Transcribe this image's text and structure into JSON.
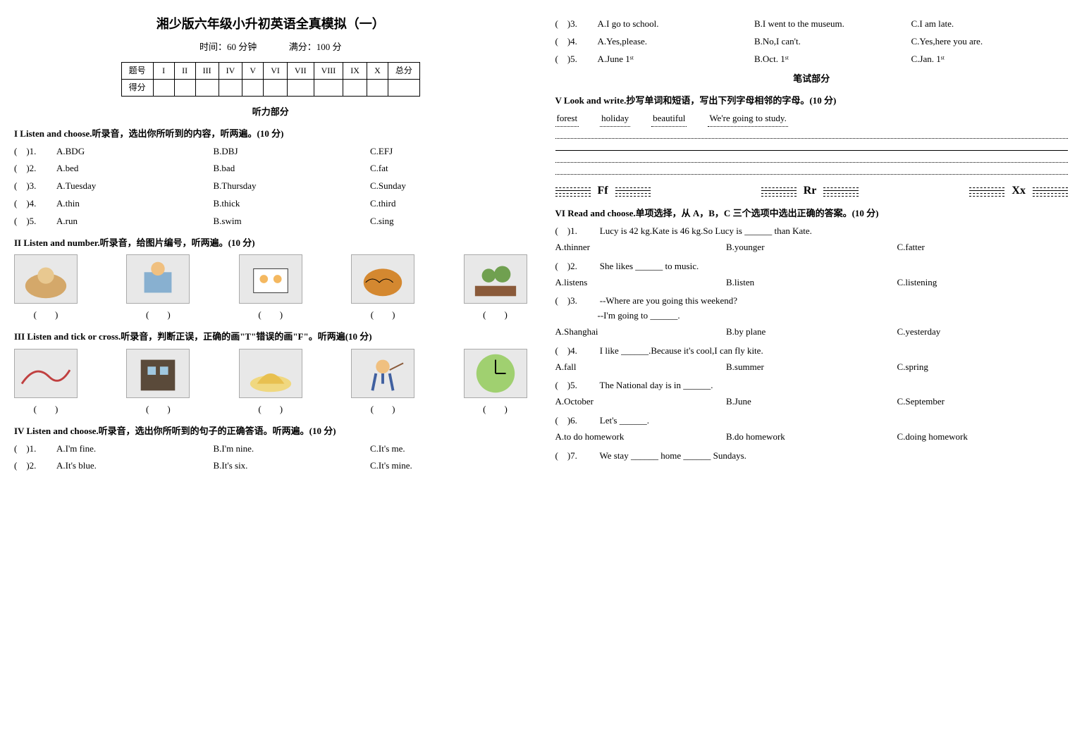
{
  "header": {
    "title": "湘少版六年级小升初英语全真模拟（一）",
    "subtitle_left": "时间：60 分钟",
    "subtitle_right": "满分：100 分"
  },
  "score_table": {
    "row1": [
      "题号",
      "I",
      "II",
      "III",
      "IV",
      "V",
      "VI",
      "VII",
      "VIII",
      "IX",
      "X",
      "总分"
    ],
    "row2_label": "得分"
  },
  "listening_hdr": "听力部分",
  "sec1": {
    "head": "I Listen and choose.听录音，选出你所听到的内容，听两遍。(10 分)",
    "items": [
      {
        "n": ")1.",
        "a": "A.BDG",
        "b": "B.DBJ",
        "c": "C.EFJ"
      },
      {
        "n": ")2.",
        "a": "A.bed",
        "b": "B.bad",
        "c": "C.fat"
      },
      {
        "n": ")3.",
        "a": "A.Tuesday",
        "b": "B.Thursday",
        "c": "C.Sunday"
      },
      {
        "n": ")4.",
        "a": "A.thin",
        "b": "B.thick",
        "c": "C.third"
      },
      {
        "n": ")5.",
        "a": "A.run",
        "b": "B.swim",
        "c": "C.sing"
      }
    ]
  },
  "sec2": {
    "head": "II Listen and number.听录音，给图片编号，听两遍。(10 分)"
  },
  "sec3": {
    "head": "III Listen and tick or cross.听录音，判断正误，正确的画\"T\"错误的画\"F\"。听两遍(10 分)"
  },
  "sec4": {
    "head": "IV Listen and choose.听录音，选出你所听到的句子的正确答语。听两遍。(10 分)",
    "items": [
      {
        "n": ")1.",
        "a": "A.I'm fine.",
        "b": "B.I'm nine.",
        "c": "C.It's me."
      },
      {
        "n": ")2.",
        "a": "A.It's blue.",
        "b": "B.It's six.",
        "c": "C.It's mine."
      },
      {
        "n": ")3.",
        "a": "A.I go to school.",
        "b": "B.I went to the museum.",
        "c": "C.I am late."
      },
      {
        "n": ")4.",
        "a": "A.Yes,please.",
        "b": "B.No,I can't.",
        "c": "C.Yes,here you are."
      },
      {
        "n": ")5.",
        "a": "A.June 1ˢᵗ",
        "b": "B.Oct. 1ˢᵗ",
        "c": "C.Jan. 1ˢᵗ"
      }
    ]
  },
  "written_hdr": "笔试部分",
  "sec5": {
    "head": "V Look and write.抄写单词和短语，写出下列字母相邻的字母。(10 分)",
    "words": [
      "forest",
      "holiday",
      "beautiful",
      "We're going to study."
    ],
    "letters": [
      "Ff",
      "Rr",
      "Xx"
    ]
  },
  "sec6": {
    "head": "VI Read and choose.单项选择，从 A，B，C 三个选项中选出正确的答案。(10 分)",
    "items": [
      {
        "n": ")1.",
        "stem": "Lucy is 42 kg.Kate is 46 kg.So Lucy is ______ than Kate.",
        "a": "A.thinner",
        "b": "B.younger",
        "c": "C.fatter"
      },
      {
        "n": ")2.",
        "stem": "She likes ______ to music.",
        "a": "A.listens",
        "b": "B.listen",
        "c": "C.listening"
      },
      {
        "n": ")3.",
        "stem": "--Where are you going this weekend?",
        "stem2": "--I'm going to ______.",
        "a": "A.Shanghai",
        "b": "B.by plane",
        "c": "C.yesterday"
      },
      {
        "n": ")4.",
        "stem": "I like ______.Because it's cool,I can fly kite.",
        "a": "A.fall",
        "b": "B.summer",
        "c": "C.spring"
      },
      {
        "n": ")5.",
        "stem": "The National day is in ______.",
        "a": "A.October",
        "b": "B.June",
        "c": "C.September"
      },
      {
        "n": ")6.",
        "stem": "Let's ______.",
        "a": "A.to do homework",
        "b": "B.do homework",
        "c": "C.doing homework"
      },
      {
        "n": ")7.",
        "stem": "We stay ______ home ______ Sundays."
      }
    ]
  },
  "paren": "(　　)",
  "img_placeholder_colors": {
    "bg": "#e8e8e8",
    "border": "#aaaaaa"
  }
}
